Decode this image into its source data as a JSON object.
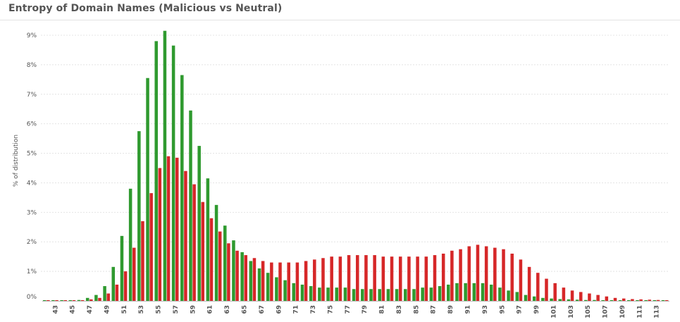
{
  "chart_data": {
    "type": "bar",
    "title": "Entropy of Domain Names (Malicious vs Neutral)",
    "ylabel": "% of distribution",
    "xlabel": "",
    "ylim": [
      0,
      9.5
    ],
    "y_ticks": [
      "0%",
      "1%",
      "2%",
      "3%",
      "4%",
      "5%",
      "6%",
      "7%",
      "8%",
      "9%"
    ],
    "x_tick_every": 2,
    "colors": {
      "green": "#2f9a2f",
      "red": "#d62728"
    },
    "x": [
      42,
      43,
      44,
      45,
      46,
      47,
      48,
      49,
      50,
      51,
      52,
      53,
      54,
      55,
      56,
      57,
      58,
      59,
      60,
      61,
      62,
      63,
      64,
      65,
      66,
      67,
      68,
      69,
      70,
      71,
      72,
      73,
      74,
      75,
      76,
      77,
      78,
      79,
      80,
      81,
      82,
      83,
      84,
      85,
      86,
      87,
      88,
      89,
      90,
      91,
      92,
      93,
      94,
      95,
      96,
      97,
      98,
      99,
      100,
      101,
      102,
      103,
      104,
      105,
      106,
      107,
      108,
      109,
      110,
      111,
      112,
      113,
      114
    ],
    "series": [
      {
        "color": "green",
        "values": [
          0.02,
          0.02,
          0.02,
          0.02,
          0.03,
          0.1,
          0.2,
          0.5,
          1.15,
          2.2,
          3.8,
          5.75,
          7.55,
          8.8,
          9.15,
          8.65,
          7.65,
          6.45,
          5.25,
          4.15,
          3.25,
          2.55,
          2.05,
          1.65,
          1.35,
          1.1,
          0.95,
          0.8,
          0.7,
          0.6,
          0.55,
          0.5,
          0.45,
          0.45,
          0.45,
          0.45,
          0.4,
          0.4,
          0.4,
          0.4,
          0.4,
          0.4,
          0.4,
          0.4,
          0.45,
          0.45,
          0.5,
          0.55,
          0.6,
          0.6,
          0.6,
          0.6,
          0.55,
          0.45,
          0.35,
          0.3,
          0.2,
          0.15,
          0.1,
          0.08,
          0.06,
          0.05,
          0.04,
          0.03,
          0.03,
          0.02,
          0.02,
          0.02,
          0.02,
          0.02,
          0.01,
          0.01,
          0.01
        ]
      },
      {
        "color": "red",
        "values": [
          0.02,
          0.02,
          0.02,
          0.02,
          0.02,
          0.05,
          0.1,
          0.25,
          0.55,
          1.0,
          1.8,
          2.7,
          3.65,
          4.5,
          4.9,
          4.85,
          4.4,
          3.95,
          3.35,
          2.8,
          2.35,
          1.95,
          1.7,
          1.55,
          1.45,
          1.35,
          1.3,
          1.3,
          1.3,
          1.3,
          1.35,
          1.4,
          1.45,
          1.5,
          1.5,
          1.55,
          1.55,
          1.55,
          1.55,
          1.5,
          1.5,
          1.5,
          1.5,
          1.5,
          1.5,
          1.55,
          1.6,
          1.7,
          1.75,
          1.85,
          1.9,
          1.85,
          1.8,
          1.75,
          1.6,
          1.4,
          1.15,
          0.95,
          0.75,
          0.6,
          0.45,
          0.35,
          0.3,
          0.25,
          0.2,
          0.15,
          0.1,
          0.08,
          0.06,
          0.05,
          0.04,
          0.03,
          0.02
        ]
      }
    ]
  }
}
